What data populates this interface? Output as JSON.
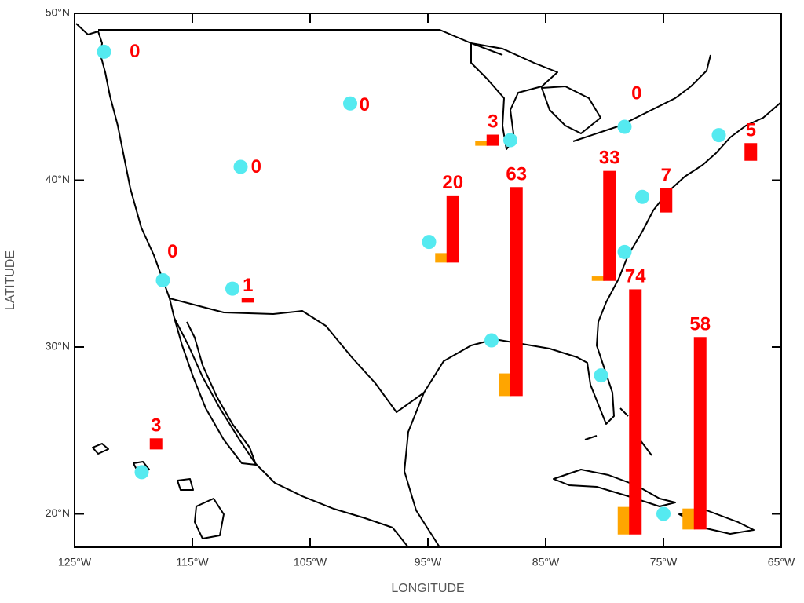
{
  "chart_data": {
    "type": "glyph-map",
    "xlabel": "LONGITUDE",
    "ylabel": "LATITUDE",
    "xlim": [
      -125,
      -65
    ],
    "ylim": [
      18,
      50
    ],
    "xticks": [
      {
        "value": -125,
        "label": "125°W"
      },
      {
        "value": -115,
        "label": "115°W"
      },
      {
        "value": -105,
        "label": "105°W"
      },
      {
        "value": -95,
        "label": "95°W"
      },
      {
        "value": -85,
        "label": "85°W"
      },
      {
        "value": -75,
        "label": "75°W"
      },
      {
        "value": -65,
        "label": "65°W"
      }
    ],
    "yticks": [
      {
        "value": 20,
        "label": "20°N"
      },
      {
        "value": 30,
        "label": "30°N"
      },
      {
        "value": 40,
        "label": "40°N"
      },
      {
        "value": 50,
        "label": "50°N"
      }
    ],
    "bar_colors": [
      "#3344ff",
      "#ffa500",
      "#ff0000"
    ],
    "station_color": "#55eaf0",
    "label_color": "#ff0000",
    "stations": [
      {
        "lon": -122.5,
        "lat": 47.7,
        "glyph_lon": -122.3,
        "glyph_lat": 46.9,
        "values": [
          0,
          0,
          0
        ]
      },
      {
        "lon": -101.6,
        "lat": 44.6,
        "glyph_lon": -102.8,
        "glyph_lat": 43.7,
        "values": [
          0,
          0,
          0
        ]
      },
      {
        "lon": -110.9,
        "lat": 40.8,
        "glyph_lon": -112.0,
        "glyph_lat": 40.0,
        "values": [
          0,
          0,
          0
        ]
      },
      {
        "lon": -117.5,
        "lat": 34.0,
        "glyph_lon": -119.1,
        "glyph_lat": 34.9,
        "values": [
          0,
          0,
          0
        ]
      },
      {
        "lon": -111.6,
        "lat": 33.5,
        "glyph_lon": -112.7,
        "glyph_lat": 32.7,
        "values": [
          0,
          0,
          1
        ]
      },
      {
        "lon": -119.3,
        "lat": 22.5,
        "glyph_lon": -120.5,
        "glyph_lat": 23.9,
        "values": [
          0,
          0,
          3
        ]
      },
      {
        "lon": -94.9,
        "lat": 36.3,
        "glyph_lon": -95.3,
        "glyph_lat": 35.1,
        "values": [
          0,
          2.5,
          20
        ]
      },
      {
        "lon": -88.0,
        "lat": 42.4,
        "glyph_lon": -91.9,
        "glyph_lat": 42.1,
        "values": [
          0,
          1,
          3
        ]
      },
      {
        "lon": -89.6,
        "lat": 30.4,
        "glyph_lon": -89.9,
        "glyph_lat": 27.1,
        "values": [
          0,
          6.5,
          63
        ]
      },
      {
        "lon": -78.3,
        "lat": 43.2,
        "glyph_lon": -79.7,
        "glyph_lat": 44.4,
        "values": [
          0,
          0,
          0
        ]
      },
      {
        "lon": -76.8,
        "lat": 39.0,
        "glyph_lon": -77.2,
        "glyph_lat": 38.1,
        "values": [
          0,
          0,
          7
        ]
      },
      {
        "lon": -78.3,
        "lat": 35.7,
        "glyph_lon": -82.0,
        "glyph_lat": 34.0,
        "values": [
          0,
          1,
          33
        ]
      },
      {
        "lon": -80.3,
        "lat": 28.3,
        "glyph_lon": -79.8,
        "glyph_lat": 18.8,
        "values": [
          0,
          8,
          74
        ]
      },
      {
        "lon": -75.0,
        "lat": 20.0,
        "glyph_lon": -74.3,
        "glyph_lat": 19.1,
        "values": [
          0,
          6,
          58
        ]
      },
      {
        "lon": -70.3,
        "lat": 42.7,
        "glyph_lon": -70.0,
        "glyph_lat": 41.2,
        "values": [
          0,
          0,
          5
        ]
      }
    ]
  }
}
